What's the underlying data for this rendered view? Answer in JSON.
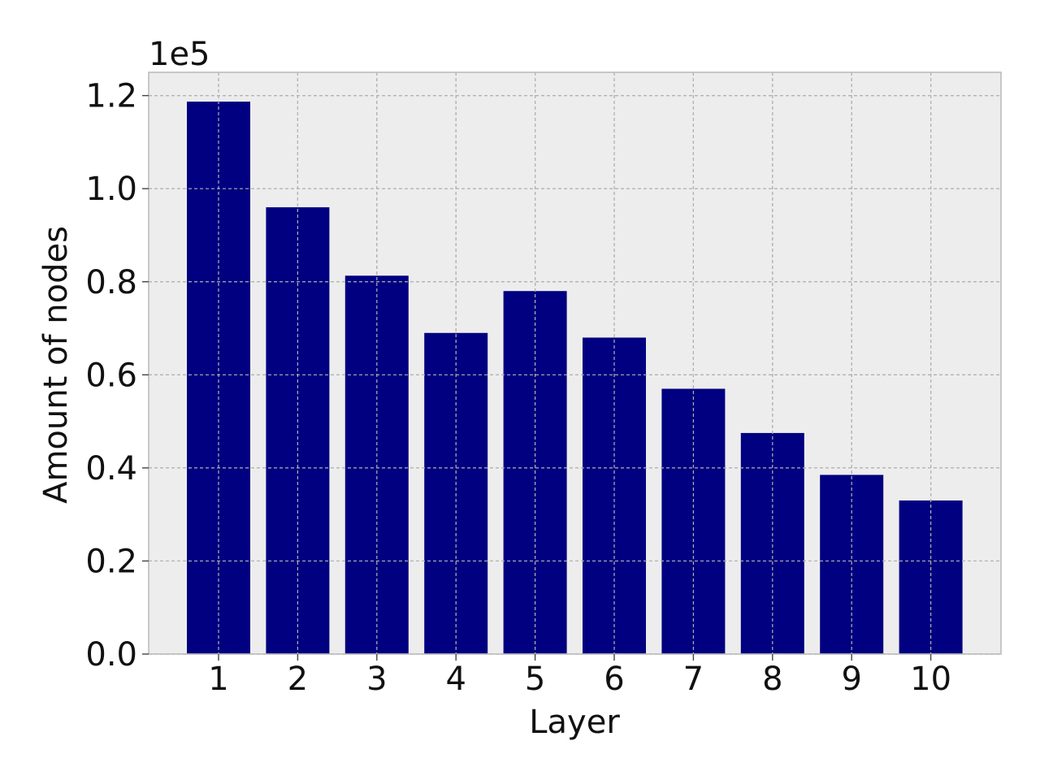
{
  "chart_data": {
    "type": "bar",
    "title": "",
    "xlabel": "Layer",
    "ylabel": "Amount of nodes",
    "offset_text": "1e5",
    "categories": [
      "1",
      "2",
      "3",
      "4",
      "5",
      "6",
      "7",
      "8",
      "9",
      "10"
    ],
    "values": [
      118700,
      96000,
      81300,
      69000,
      78000,
      68000,
      57000,
      47500,
      38500,
      33000
    ],
    "ylim": [
      0,
      125000
    ],
    "yticks": [
      0,
      20000,
      40000,
      60000,
      80000,
      100000,
      120000
    ],
    "ytick_labels": [
      "0.0",
      "0.2",
      "0.4",
      "0.6",
      "0.8",
      "1.0",
      "1.2"
    ],
    "grid": true,
    "legend": "none",
    "colors": {
      "bar": "#000080",
      "plot_background": "#ededed",
      "grid": "#b2b2b2",
      "spine": "#bcbcbc"
    }
  }
}
